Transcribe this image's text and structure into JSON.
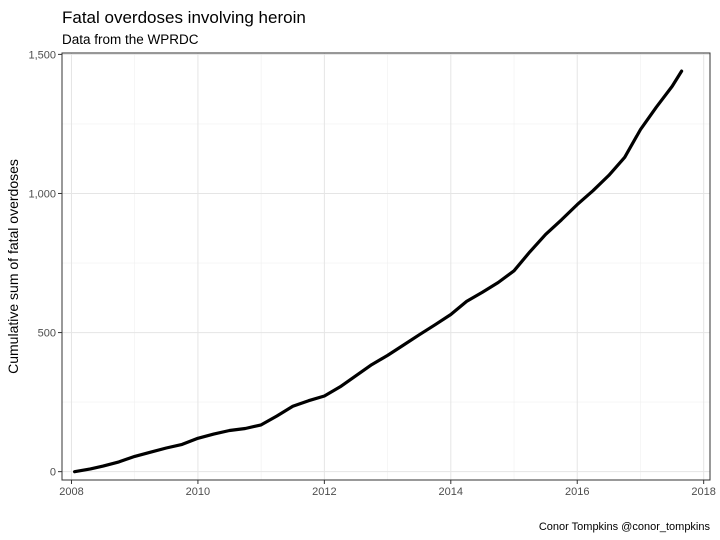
{
  "chart_data": {
    "type": "line",
    "title": "Fatal overdoses involving heroin",
    "subtitle": "Data from the WPRDC",
    "ylabel": "Cumulative sum of fatal overdoses",
    "xlabel": "",
    "caption": "Conor Tompkins @conor_tompkins",
    "xlim": [
      2007.85,
      2018.1
    ],
    "ylim": [
      -30,
      1505
    ],
    "x_ticks": [
      {
        "value": 2008,
        "label": "2008"
      },
      {
        "value": 2010,
        "label": "2010"
      },
      {
        "value": 2012,
        "label": "2012"
      },
      {
        "value": 2014,
        "label": "2014"
      },
      {
        "value": 2016,
        "label": "2016"
      },
      {
        "value": 2018,
        "label": "2018"
      }
    ],
    "y_ticks": [
      {
        "value": 0,
        "label": "0"
      },
      {
        "value": 500,
        "label": "500"
      },
      {
        "value": 1000,
        "label": "1,000"
      },
      {
        "value": 1500,
        "label": "1,500"
      }
    ],
    "grid": true,
    "line_color": "#000000",
    "series": [
      {
        "x": [
          2008.05,
          2008.3,
          2008.5,
          2008.75,
          2009.0,
          2009.25,
          2009.5,
          2009.75,
          2010.0,
          2010.25,
          2010.5,
          2010.75,
          2011.0,
          2011.25,
          2011.5,
          2011.75,
          2012.0,
          2012.25,
          2012.5,
          2012.75,
          2013.0,
          2013.25,
          2013.5,
          2013.75,
          2014.0,
          2014.25,
          2014.5,
          2014.75,
          2015.0,
          2015.25,
          2015.5,
          2015.75,
          2016.0,
          2016.25,
          2016.5,
          2016.75,
          2017.0,
          2017.25,
          2017.5,
          2017.65
        ],
        "values": [
          0,
          10,
          20,
          35,
          55,
          70,
          85,
          98,
          120,
          135,
          148,
          155,
          168,
          200,
          235,
          255,
          272,
          305,
          345,
          385,
          418,
          455,
          492,
          528,
          565,
          612,
          645,
          680,
          722,
          790,
          853,
          905,
          960,
          1010,
          1065,
          1130,
          1230,
          1310,
          1385,
          1440
        ]
      }
    ]
  }
}
